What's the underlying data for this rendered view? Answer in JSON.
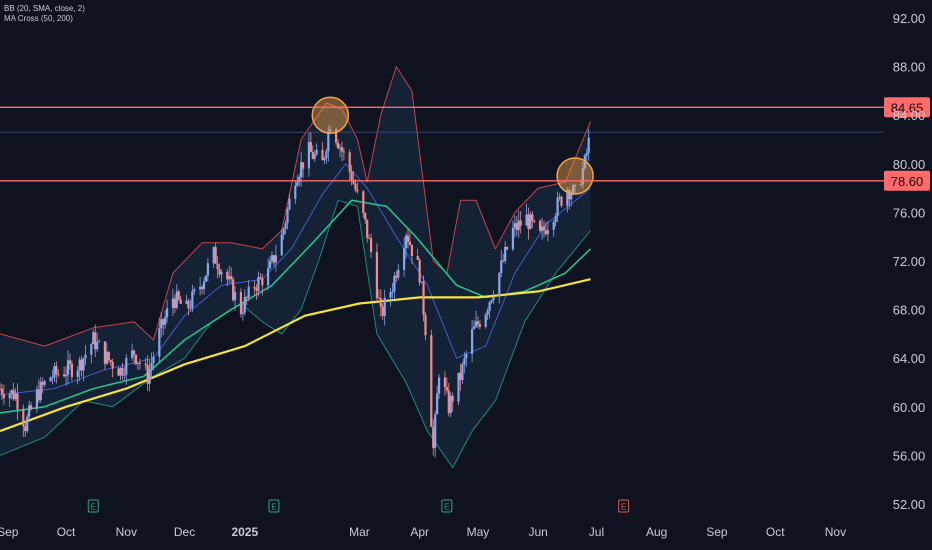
{
  "legend": {
    "line1": "BB (20, SMA, close, 2)",
    "line2": "MA Cross (50, 200)"
  },
  "colors": {
    "background": "#0f1320",
    "up_candle": "#86a8f0",
    "down_candle": "#f08c8c",
    "bb_upper": "#c8444c",
    "bb_lower": "#1e8a78",
    "bb_basis": "#3a5fd0",
    "bb_fill": "#16263a",
    "ma_fast": "#26c08a",
    "ma_slow": "#f5e23a",
    "resistance": "#ff6b6b",
    "highlight_circle": "#f5a54a",
    "axis_text": "#c9ccd6",
    "label_bg": "#ff6b6b"
  },
  "chart_data": {
    "type": "candlestick",
    "ylim": [
      50.0,
      94.0
    ],
    "y_ticks": [
      "92.00",
      "88.00",
      "84.00",
      "80.00",
      "76.00",
      "72.00",
      "68.00",
      "64.00",
      "60.00",
      "56.00",
      "52.00"
    ],
    "y_tick_values": [
      92,
      88,
      84,
      80,
      76,
      72,
      68,
      64,
      60,
      56,
      52
    ],
    "x_ticks": [
      "Sep",
      "Oct",
      "Nov",
      "Dec",
      "2025",
      "Mar",
      "Apr",
      "May",
      "Jun",
      "Jul",
      "Aug",
      "Sep",
      "Oct",
      "Nov"
    ],
    "x_tick_dates": [
      "2024-09-01",
      "2024-10-01",
      "2024-11-01",
      "2024-12-01",
      "2025-01-01",
      "2025-03-01",
      "2025-04-01",
      "2025-05-01",
      "2025-06-01",
      "2025-07-01",
      "2025-08-01",
      "2025-09-01",
      "2025-10-01",
      "2025-11-01"
    ],
    "xlim": [
      "2024-08-28",
      "2025-11-26"
    ],
    "horizontal_levels": [
      {
        "label": "84.65",
        "value": 84.65
      },
      {
        "label": "78.60",
        "value": 78.6
      }
    ],
    "last_price_level": 82.6,
    "event_markers": [
      {
        "date": "2024-10-15",
        "symbol": "E"
      },
      {
        "date": "2025-01-16",
        "symbol": "E"
      },
      {
        "date": "2025-04-15",
        "symbol": "E"
      },
      {
        "date": "2025-07-15",
        "symbol": "E"
      }
    ],
    "highlights": [
      {
        "date": "2025-02-14",
        "value": 84.0
      },
      {
        "date": "2025-06-20",
        "value": 79.0
      }
    ],
    "price_path": [
      [
        "2024-08-28",
        61.5
      ],
      [
        "2024-09-05",
        61.0
      ],
      [
        "2024-09-10",
        58.5
      ],
      [
        "2024-09-16",
        61.0
      ],
      [
        "2024-09-23",
        62.5
      ],
      [
        "2024-10-01",
        63.0
      ],
      [
        "2024-10-08",
        63.5
      ],
      [
        "2024-10-15",
        65.5
      ],
      [
        "2024-10-22",
        64.0
      ],
      [
        "2024-10-29",
        63.0
      ],
      [
        "2024-11-05",
        64.5
      ],
      [
        "2024-11-12",
        62.5
      ],
      [
        "2024-11-18",
        66.0
      ],
      [
        "2024-11-25",
        69.0
      ],
      [
        "2024-12-02",
        68.0
      ],
      [
        "2024-12-09",
        70.0
      ],
      [
        "2024-12-16",
        72.5
      ],
      [
        "2024-12-23",
        70.5
      ],
      [
        "2024-12-30",
        68.0
      ],
      [
        "2025-01-06",
        70.0
      ],
      [
        "2025-01-13",
        71.0
      ],
      [
        "2025-01-20",
        74.0
      ],
      [
        "2025-01-27",
        79.0
      ],
      [
        "2025-02-03",
        81.0
      ],
      [
        "2025-02-10",
        80.0
      ],
      [
        "2025-02-14",
        83.5
      ],
      [
        "2025-02-19",
        81.5
      ],
      [
        "2025-02-25",
        79.0
      ],
      [
        "2025-03-04",
        75.0
      ],
      [
        "2025-03-08",
        72.0
      ],
      [
        "2025-03-12",
        67.5
      ],
      [
        "2025-03-18",
        70.0
      ],
      [
        "2025-03-25",
        74.5
      ],
      [
        "2025-04-01",
        71.0
      ],
      [
        "2025-04-04",
        66.5
      ],
      [
        "2025-04-08",
        56.5
      ],
      [
        "2025-04-11",
        63.0
      ],
      [
        "2025-04-16",
        60.0
      ],
      [
        "2025-04-22",
        62.5
      ],
      [
        "2025-04-28",
        66.0
      ],
      [
        "2025-05-05",
        68.0
      ],
      [
        "2025-05-12",
        71.0
      ],
      [
        "2025-05-19",
        74.5
      ],
      [
        "2025-05-26",
        75.5
      ],
      [
        "2025-06-02",
        74.0
      ],
      [
        "2025-06-09",
        76.0
      ],
      [
        "2025-06-16",
        78.0
      ],
      [
        "2025-06-20",
        77.5
      ],
      [
        "2025-06-25",
        80.0
      ],
      [
        "2025-06-28",
        82.6
      ]
    ],
    "bb_upper_path": [
      [
        "2024-08-28",
        66.0
      ],
      [
        "2024-09-20",
        65.0
      ],
      [
        "2024-10-15",
        66.5
      ],
      [
        "2024-11-05",
        67.0
      ],
      [
        "2024-11-15",
        65.5
      ],
      [
        "2024-11-25",
        71.0
      ],
      [
        "2024-12-10",
        73.5
      ],
      [
        "2024-12-25",
        73.5
      ],
      [
        "2025-01-10",
        73.0
      ],
      [
        "2025-01-20",
        74.5
      ],
      [
        "2025-01-30",
        82.0
      ],
      [
        "2025-02-12",
        85.0
      ],
      [
        "2025-02-20",
        84.5
      ],
      [
        "2025-02-28",
        82.0
      ],
      [
        "2025-03-05",
        78.5
      ],
      [
        "2025-03-12",
        84.0
      ],
      [
        "2025-03-20",
        88.0
      ],
      [
        "2025-03-28",
        86.0
      ],
      [
        "2025-04-08",
        72.0
      ],
      [
        "2025-04-15",
        71.0
      ],
      [
        "2025-04-22",
        77.0
      ],
      [
        "2025-04-30",
        77.0
      ],
      [
        "2025-05-10",
        73.0
      ],
      [
        "2025-05-20",
        76.0
      ],
      [
        "2025-06-01",
        78.0
      ],
      [
        "2025-06-15",
        78.5
      ],
      [
        "2025-06-28",
        83.5
      ]
    ],
    "bb_lower_path": [
      [
        "2024-08-28",
        56.0
      ],
      [
        "2024-09-20",
        57.5
      ],
      [
        "2024-10-10",
        60.5
      ],
      [
        "2024-10-25",
        60.0
      ],
      [
        "2024-11-15",
        62.5
      ],
      [
        "2024-12-01",
        64.0
      ],
      [
        "2024-12-15",
        67.0
      ],
      [
        "2024-12-30",
        68.5
      ],
      [
        "2025-01-10",
        67.0
      ],
      [
        "2025-01-20",
        66.0
      ],
      [
        "2025-01-30",
        68.0
      ],
      [
        "2025-02-08",
        72.0
      ],
      [
        "2025-02-18",
        77.0
      ],
      [
        "2025-02-28",
        76.5
      ],
      [
        "2025-03-10",
        66.0
      ],
      [
        "2025-03-25",
        62.0
      ],
      [
        "2025-04-05",
        58.0
      ],
      [
        "2025-04-18",
        55.0
      ],
      [
        "2025-04-28",
        58.0
      ],
      [
        "2025-05-10",
        60.5
      ],
      [
        "2025-05-25",
        67.0
      ],
      [
        "2025-06-10",
        71.0
      ],
      [
        "2025-06-28",
        74.5
      ]
    ],
    "bb_basis_path": [
      [
        "2024-08-28",
        61.0
      ],
      [
        "2024-09-25",
        61.5
      ],
      [
        "2024-10-20",
        63.0
      ],
      [
        "2024-11-15",
        64.0
      ],
      [
        "2024-12-01",
        67.5
      ],
      [
        "2024-12-20",
        70.0
      ],
      [
        "2025-01-10",
        70.5
      ],
      [
        "2025-01-25",
        73.0
      ],
      [
        "2025-02-10",
        77.5
      ],
      [
        "2025-02-22",
        80.0
      ],
      [
        "2025-03-05",
        78.0
      ],
      [
        "2025-03-20",
        74.0
      ],
      [
        "2025-04-05",
        70.0
      ],
      [
        "2025-04-20",
        64.0
      ],
      [
        "2025-05-05",
        65.0
      ],
      [
        "2025-05-20",
        71.0
      ],
      [
        "2025-06-05",
        75.0
      ],
      [
        "2025-06-28",
        78.0
      ]
    ],
    "ma_fast_path": [
      [
        "2024-08-28",
        59.5
      ],
      [
        "2024-09-20",
        60.0
      ],
      [
        "2024-10-15",
        61.5
      ],
      [
        "2024-11-10",
        62.5
      ],
      [
        "2024-12-01",
        65.5
      ],
      [
        "2024-12-25",
        68.0
      ],
      [
        "2025-01-15",
        70.0
      ],
      [
        "2025-02-05",
        73.5
      ],
      [
        "2025-02-25",
        77.0
      ],
      [
        "2025-03-15",
        76.5
      ],
      [
        "2025-03-30",
        74.0
      ],
      [
        "2025-04-20",
        70.0
      ],
      [
        "2025-05-05",
        69.0
      ],
      [
        "2025-05-25",
        69.5
      ],
      [
        "2025-06-15",
        71.0
      ],
      [
        "2025-06-28",
        73.0
      ]
    ],
    "ma_slow_path": [
      [
        "2024-08-28",
        58.0
      ],
      [
        "2024-10-01",
        60.0
      ],
      [
        "2024-11-01",
        61.5
      ],
      [
        "2024-12-01",
        63.5
      ],
      [
        "2025-01-01",
        65.0
      ],
      [
        "2025-02-01",
        67.5
      ],
      [
        "2025-03-01",
        68.5
      ],
      [
        "2025-04-01",
        69.0
      ],
      [
        "2025-05-01",
        69.0
      ],
      [
        "2025-06-01",
        69.5
      ],
      [
        "2025-06-28",
        70.5
      ]
    ]
  }
}
